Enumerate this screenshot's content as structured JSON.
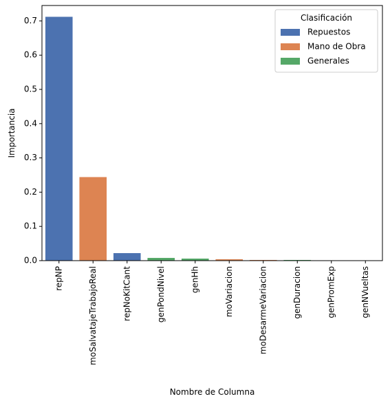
{
  "chart_data": {
    "type": "bar",
    "categories": [
      "repNP",
      "moSalvatajeTrabajoReal",
      "repNoKitCant",
      "genPondNivel",
      "genHh",
      "moVariacion",
      "moDesarmeVariacion",
      "genDuracion",
      "genPromExp",
      "genNVueltas"
    ],
    "values": [
      0.712,
      0.244,
      0.022,
      0.008,
      0.006,
      0.004,
      0.002,
      0.002,
      0.0005,
      0.0003
    ],
    "bar_groups": [
      "Repuestos",
      "Mano de Obra",
      "Repuestos",
      "Generales",
      "Generales",
      "Mano de Obra",
      "Mano de Obra",
      "Generales",
      "Generales",
      "Generales"
    ],
    "title": "",
    "xlabel": "Nombre de Columna",
    "ylabel": "Importancia",
    "ylim": [
      0,
      0.745
    ],
    "yticks": [
      "0.0",
      "0.1",
      "0.2",
      "0.3",
      "0.4",
      "0.5",
      "0.6",
      "0.7"
    ],
    "ytick_values": [
      0.0,
      0.1,
      0.2,
      0.3,
      0.4,
      0.5,
      0.6,
      0.7
    ],
    "grid": false,
    "legend": {
      "title": "Clasificación",
      "placement": "top-right",
      "entries": [
        {
          "name": "Repuestos",
          "color": "#4c72b0"
        },
        {
          "name": "Mano de Obra",
          "color": "#dd8452"
        },
        {
          "name": "Generales",
          "color": "#55a868"
        }
      ]
    }
  }
}
